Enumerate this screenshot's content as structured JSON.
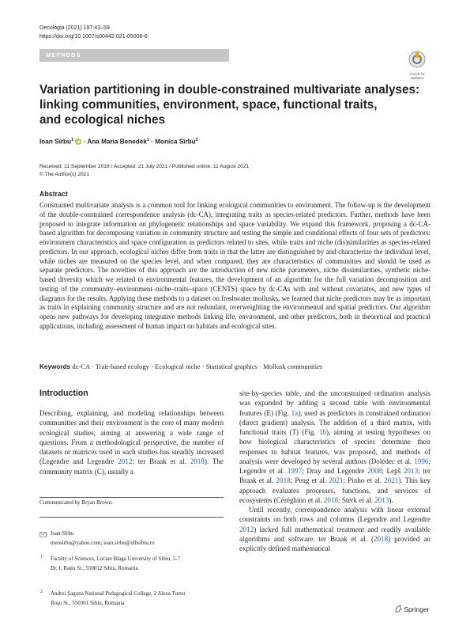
{
  "header": {
    "journal": "Oecologia (2021) 197:43–59",
    "doi": "https://doi.org/10.1007/s00442-021-05006-6",
    "section": "METHODS",
    "badge": [
      "Check for",
      "updates"
    ]
  },
  "title_lines": [
    "Variation partitioning in double-constrained multivariate analyses:",
    "linking communities, environment, space, functional traits,",
    "and ecological niches"
  ],
  "authors": [
    {
      "name": "Ioan Sîrbu",
      "affiliation": "1"
    },
    {
      "name": "· Ana Maria Benedek",
      "affiliation": "1"
    },
    {
      "name": "· Monica Sîrbu",
      "affiliation": "2"
    }
  ],
  "dates": "Received: 11 September 2019 / Accepted: 21 July 2021 / Published online: 11 August 2021",
  "copyright": "© The Author(s) 2021",
  "abstract": {
    "heading": "Abstract",
    "text": "Constrained multivariate analysis is a common tool for linking ecological communities to environment. The follow-up is the development of the double-constrained correspondence analysis (dc-CA), integrating traits as species-related predictors. Further, methods have been proposed to integrate information on phylogenetic relationships and space variability. We expand this framework, proposing a dc-CA-based algorithm for decomposing variation in community structure and testing the simple and conditional effects of four sets of predictors: environment characteristics and space configuration as predictors related to sites, while traits and niche (dis)similarities as species-related predictors. In our approach, ecological niches differ from traits in that the latter are distinguished by and characterize the individual level, while niches are measured on the species level, and when compared, they are characteristics of communities and should be used as separate predictors. The novelties of this approach are the introduction of new niche parameters, niche dissimilarities, synthetic niche-based diversity which we related to environmental features, the development of an algorithm for the full variation decomposition and testing of the community–environment–niche–traits–space (CENTS) space by dc-CAs with and without covariates, and new types of diagrams for the results. Applying these methods to a dataset on freshwater mollusks, we learned that niche predictors may be as important as traits in explaining community structure and are not redundant, overweighting the environmental and spatial predictors. Our algorithm opens new pathways for developing integrative methods linking life, environment, and other predictors, both in theoretical and practical applications, including assessment of human impact on habitats and ecological sites."
  },
  "keywords": {
    "label": "Keywords",
    "text": "dc-CA · Trait-based ecology · Ecological niche · Statistical graphics · Mollusk communities"
  },
  "introduction": {
    "heading": "Introduction",
    "left_paragraph": [
      "Describing, explaining, and modeling relationships between communities and their environment is the core of many modern ecological studies, aiming at answering a wide range of questions. From a methodological perspective, the number of datasets or matrices used in such studies has steadily increased (Legendre and Legendre ",
      {
        "link": "2012"
      },
      "; ter Braak et al. ",
      {
        "link": "2018"
      },
      "). The community matrix (C), usually a"
    ],
    "right_paragraphs": [
      [
        "site-by-species table, and the unconstrained ordination analysis was expanded by adding a second table with environmental features (E) (Fig. ",
        {
          "link": "1a"
        },
        "), used as predictors in constrained ordination (direct gradient) analysis. The addition of a third matrix, with functional traits (T) (Fig. ",
        {
          "link": "1b"
        },
        "), aiming at testing hypotheses on how biological characteristics of species determine their responses to habitat features, was proposed, and methods of analysis were developed by several authors (Dolédec et al. ",
        {
          "link": "1996"
        },
        "; Legendre et al. ",
        {
          "link": "1997"
        },
        "; Dray and Legendre ",
        {
          "link": "2008"
        },
        "; Lepš ",
        {
          "link": "2013"
        },
        "; ter Braak et al. ",
        {
          "link": "2018"
        },
        "; Peng et al. ",
        {
          "link": "2021"
        },
        "; Pinho et al. ",
        {
          "link": "2021"
        },
        "). This key approach evaluates processes, functions, and services of ecosystems (Céréghino et al. ",
        {
          "link": "2018"
        },
        "; Sterk et al. ",
        {
          "link": "2013"
        },
        ")."
      ],
      [
        "Until recently, correspondence analysis with linear external constraints on both rows and columns (Legendre and Legendre ",
        {
          "link": "2012"
        },
        ") lacked full mathematical treatment and readily available algorithms and software. ter Braak et al. (",
        {
          "link": "2018"
        },
        ") provided an explicitly defined mathematical"
      ]
    ]
  },
  "footnotes": {
    "communicated": "Communicated by Bryan Brown.",
    "correspondence_name": "Ioan Sîrbu",
    "correspondence_email": "meosirbu@yahoo.com; ioan.sirbu@ulbsibiu.ro",
    "affiliations": [
      {
        "number": "1",
        "lines": [
          "Faculty of Sciences, Lucian Blaga University of Sibiu, 5-7",
          "Dr. I. Rațiu St., 550012 Sibiu, Romania"
        ]
      },
      {
        "number": "2",
        "lines": [
          "Andrei Şaguna National Pedagogical College, 2 Aleea Turnu",
          "Roşu St., 550361 Sibiu, Romania"
        ]
      }
    ]
  },
  "footer": {
    "publisher": "Springer"
  }
}
